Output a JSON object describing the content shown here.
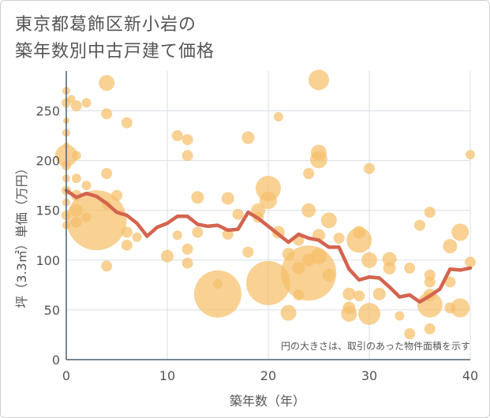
{
  "page": {
    "title_line1": "東京都葛飾区新小岩の",
    "title_line2": "築年数別中古戸建て価格"
  },
  "chart_data": {
    "type": "scatter",
    "title": "東京都葛飾区新小岩の築年数別中古戸建て価格",
    "xlabel": "築年数（年）",
    "ylabel": "坪（3.3㎡）単価（万円）",
    "xlim": [
      0,
      40
    ],
    "ylim": [
      0,
      290
    ],
    "xticks": [
      0,
      10,
      20,
      30,
      40
    ],
    "yticks": [
      0,
      50,
      100,
      150,
      200,
      250
    ],
    "grid": true,
    "note": "円の大きさは、取引のあった物件面積を示す",
    "colors": {
      "bubble": "#f5bf6a",
      "line": "#d4644e",
      "grid": "#d8dfe6",
      "axis": "#4a6070"
    },
    "bubbles": [
      {
        "x": 0,
        "y": 270,
        "s": 5
      },
      {
        "x": 0,
        "y": 258,
        "s": 6
      },
      {
        "x": 0,
        "y": 240,
        "s": 4
      },
      {
        "x": 0,
        "y": 228,
        "s": 5
      },
      {
        "x": 0,
        "y": 215,
        "s": 4
      },
      {
        "x": 0,
        "y": 205,
        "s": 14
      },
      {
        "x": 0,
        "y": 195,
        "s": 6
      },
      {
        "x": 0,
        "y": 182,
        "s": 5
      },
      {
        "x": 0,
        "y": 170,
        "s": 6
      },
      {
        "x": 0,
        "y": 158,
        "s": 5
      },
      {
        "x": 0,
        "y": 145,
        "s": 6
      },
      {
        "x": 0,
        "y": 135,
        "s": 5
      },
      {
        "x": 0.5,
        "y": 262,
        "s": 5
      },
      {
        "x": 1,
        "y": 255,
        "s": 7
      },
      {
        "x": 1,
        "y": 205,
        "s": 6
      },
      {
        "x": 1,
        "y": 182,
        "s": 6
      },
      {
        "x": 1,
        "y": 165,
        "s": 7
      },
      {
        "x": 1,
        "y": 150,
        "s": 8
      },
      {
        "x": 1,
        "y": 138,
        "s": 7
      },
      {
        "x": 2,
        "y": 258,
        "s": 6
      },
      {
        "x": 2,
        "y": 175,
        "s": 6
      },
      {
        "x": 2,
        "y": 143,
        "s": 6
      },
      {
        "x": 3,
        "y": 140,
        "s": 38
      },
      {
        "x": 4,
        "y": 278,
        "s": 10
      },
      {
        "x": 4,
        "y": 247,
        "s": 7
      },
      {
        "x": 4,
        "y": 187,
        "s": 7
      },
      {
        "x": 4,
        "y": 155,
        "s": 6
      },
      {
        "x": 4,
        "y": 94,
        "s": 7
      },
      {
        "x": 5,
        "y": 165,
        "s": 7
      },
      {
        "x": 6,
        "y": 238,
        "s": 7
      },
      {
        "x": 6,
        "y": 128,
        "s": 7
      },
      {
        "x": 6,
        "y": 115,
        "s": 7
      },
      {
        "x": 7,
        "y": 123,
        "s": 6
      },
      {
        "x": 10,
        "y": 104,
        "s": 8
      },
      {
        "x": 11,
        "y": 225,
        "s": 7
      },
      {
        "x": 11,
        "y": 125,
        "s": 6
      },
      {
        "x": 12,
        "y": 221,
        "s": 7
      },
      {
        "x": 12,
        "y": 205,
        "s": 7
      },
      {
        "x": 12,
        "y": 111,
        "s": 7
      },
      {
        "x": 12,
        "y": 97,
        "s": 7
      },
      {
        "x": 13,
        "y": 163,
        "s": 8
      },
      {
        "x": 13,
        "y": 128,
        "s": 7
      },
      {
        "x": 15,
        "y": 66,
        "s": 30
      },
      {
        "x": 15,
        "y": 76,
        "s": 6
      },
      {
        "x": 16,
        "y": 162,
        "s": 8
      },
      {
        "x": 16,
        "y": 126,
        "s": 7
      },
      {
        "x": 17,
        "y": 146,
        "s": 7
      },
      {
        "x": 18,
        "y": 223,
        "s": 8
      },
      {
        "x": 18,
        "y": 108,
        "s": 7
      },
      {
        "x": 19,
        "y": 150,
        "s": 9
      },
      {
        "x": 19,
        "y": 143,
        "s": 7
      },
      {
        "x": 20,
        "y": 172,
        "s": 16
      },
      {
        "x": 20,
        "y": 160,
        "s": 11
      },
      {
        "x": 20,
        "y": 77,
        "s": 28
      },
      {
        "x": 21,
        "y": 244,
        "s": 6
      },
      {
        "x": 21,
        "y": 128,
        "s": 8
      },
      {
        "x": 22,
        "y": 106,
        "s": 8
      },
      {
        "x": 22,
        "y": 47,
        "s": 10
      },
      {
        "x": 23,
        "y": 120,
        "s": 7
      },
      {
        "x": 23,
        "y": 65,
        "s": 7
      },
      {
        "x": 23,
        "y": 92,
        "s": 8
      },
      {
        "x": 24,
        "y": 187,
        "s": 7
      },
      {
        "x": 24,
        "y": 150,
        "s": 9
      },
      {
        "x": 24,
        "y": 87,
        "s": 35
      },
      {
        "x": 24,
        "y": 100,
        "s": 8
      },
      {
        "x": 25,
        "y": 281,
        "s": 13
      },
      {
        "x": 25,
        "y": 208,
        "s": 10
      },
      {
        "x": 25,
        "y": 201,
        "s": 11
      },
      {
        "x": 25,
        "y": 125,
        "s": 8
      },
      {
        "x": 25,
        "y": 104,
        "s": 10
      },
      {
        "x": 26,
        "y": 140,
        "s": 10
      },
      {
        "x": 26,
        "y": 85,
        "s": 8
      },
      {
        "x": 27,
        "y": 122,
        "s": 7
      },
      {
        "x": 28,
        "y": 66,
        "s": 8
      },
      {
        "x": 28,
        "y": 46,
        "s": 10
      },
      {
        "x": 28,
        "y": 52,
        "s": 8
      },
      {
        "x": 29,
        "y": 128,
        "s": 8
      },
      {
        "x": 29,
        "y": 120,
        "s": 16
      },
      {
        "x": 29,
        "y": 64,
        "s": 7
      },
      {
        "x": 30,
        "y": 192,
        "s": 7
      },
      {
        "x": 30,
        "y": 100,
        "s": 10
      },
      {
        "x": 30,
        "y": 46,
        "s": 14
      },
      {
        "x": 31,
        "y": 66,
        "s": 8
      },
      {
        "x": 32,
        "y": 101,
        "s": 9
      },
      {
        "x": 32,
        "y": 92,
        "s": 8
      },
      {
        "x": 33,
        "y": 44,
        "s": 6
      },
      {
        "x": 34,
        "y": 92,
        "s": 7
      },
      {
        "x": 34,
        "y": 26,
        "s": 7
      },
      {
        "x": 35,
        "y": 135,
        "s": 7
      },
      {
        "x": 36,
        "y": 148,
        "s": 7
      },
      {
        "x": 36,
        "y": 85,
        "s": 7
      },
      {
        "x": 36,
        "y": 78,
        "s": 7
      },
      {
        "x": 36,
        "y": 65,
        "s": 8
      },
      {
        "x": 36,
        "y": 55,
        "s": 16
      },
      {
        "x": 36,
        "y": 31,
        "s": 7
      },
      {
        "x": 38,
        "y": 114,
        "s": 9
      },
      {
        "x": 38,
        "y": 78,
        "s": 7
      },
      {
        "x": 38,
        "y": 52,
        "s": 7
      },
      {
        "x": 39,
        "y": 128,
        "s": 11
      },
      {
        "x": 39,
        "y": 52,
        "s": 12
      },
      {
        "x": 40,
        "y": 206,
        "s": 6
      },
      {
        "x": 40,
        "y": 98,
        "s": 7
      }
    ],
    "series": [
      {
        "values": [
          {
            "x": 0,
            "y": 170
          },
          {
            "x": 1,
            "y": 163
          },
          {
            "x": 2,
            "y": 167
          },
          {
            "x": 3,
            "y": 164
          },
          {
            "x": 4,
            "y": 157
          },
          {
            "x": 5,
            "y": 148
          },
          {
            "x": 6,
            "y": 145
          },
          {
            "x": 7,
            "y": 137
          },
          {
            "x": 8,
            "y": 124
          },
          {
            "x": 9,
            "y": 133
          },
          {
            "x": 10,
            "y": 137
          },
          {
            "x": 11,
            "y": 144
          },
          {
            "x": 12,
            "y": 144
          },
          {
            "x": 13,
            "y": 136
          },
          {
            "x": 14,
            "y": 134
          },
          {
            "x": 15,
            "y": 135
          },
          {
            "x": 16,
            "y": 130
          },
          {
            "x": 17,
            "y": 131
          },
          {
            "x": 18,
            "y": 148
          },
          {
            "x": 19,
            "y": 142
          },
          {
            "x": 20,
            "y": 134
          },
          {
            "x": 21,
            "y": 126
          },
          {
            "x": 22,
            "y": 118
          },
          {
            "x": 23,
            "y": 126
          },
          {
            "x": 24,
            "y": 122
          },
          {
            "x": 25,
            "y": 120
          },
          {
            "x": 26,
            "y": 113
          },
          {
            "x": 27,
            "y": 113
          },
          {
            "x": 28,
            "y": 91
          },
          {
            "x": 29,
            "y": 80
          },
          {
            "x": 30,
            "y": 83
          },
          {
            "x": 31,
            "y": 82
          },
          {
            "x": 32,
            "y": 73
          },
          {
            "x": 33,
            "y": 63
          },
          {
            "x": 34,
            "y": 65
          },
          {
            "x": 35,
            "y": 58
          },
          {
            "x": 36,
            "y": 64
          },
          {
            "x": 37,
            "y": 71
          },
          {
            "x": 38,
            "y": 91
          },
          {
            "x": 39,
            "y": 90
          },
          {
            "x": 40,
            "y": 92
          }
        ]
      }
    ]
  }
}
